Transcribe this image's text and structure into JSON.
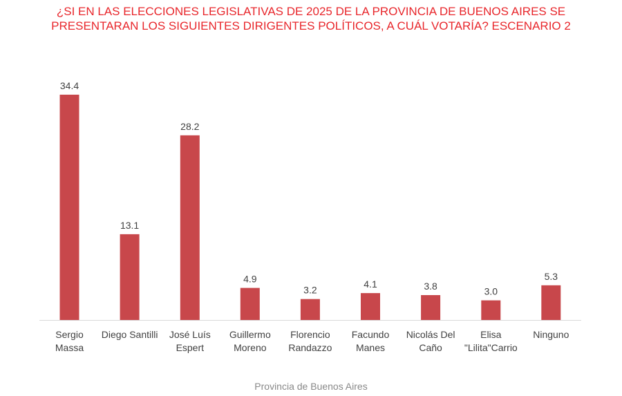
{
  "chart_data": {
    "type": "bar",
    "title_lines": [
      "¿SI EN LAS ELECCIONES LEGISLATIVAS DE 2025 DE LA PROVINCIA DE BUENOS AIRES SE",
      "PRESENTARAN LOS SIGUIENTES DIRIGENTES POLÍTICOS, A CUÁL VOTARÍA? ESCENARIO 2"
    ],
    "categories": [
      [
        "Sergio",
        "Massa"
      ],
      [
        "Diego Santilli"
      ],
      [
        "José Luís",
        "Espert"
      ],
      [
        "Guillermo",
        "Moreno"
      ],
      [
        "Florencio",
        "Randazzo"
      ],
      [
        "Facundo",
        "Manes"
      ],
      [
        "Nicolás Del",
        "Caño"
      ],
      [
        "Elisa",
        "\"Lilita\"Carrio"
      ],
      [
        "Ninguno"
      ]
    ],
    "values": [
      34.4,
      13.1,
      28.2,
      4.9,
      3.2,
      4.1,
      3.8,
      3.0,
      5.3
    ],
    "value_labels": [
      "34.4",
      "13.1",
      "28.2",
      "4.9",
      "3.2",
      "4.1",
      "3.8",
      "3.0",
      "5.3"
    ],
    "xlabel": "Provincia de Buenos Aires",
    "ylim": [
      0,
      34.4
    ],
    "grid": false,
    "bar_color": "#c8474b",
    "title_color": "#e8262b"
  }
}
